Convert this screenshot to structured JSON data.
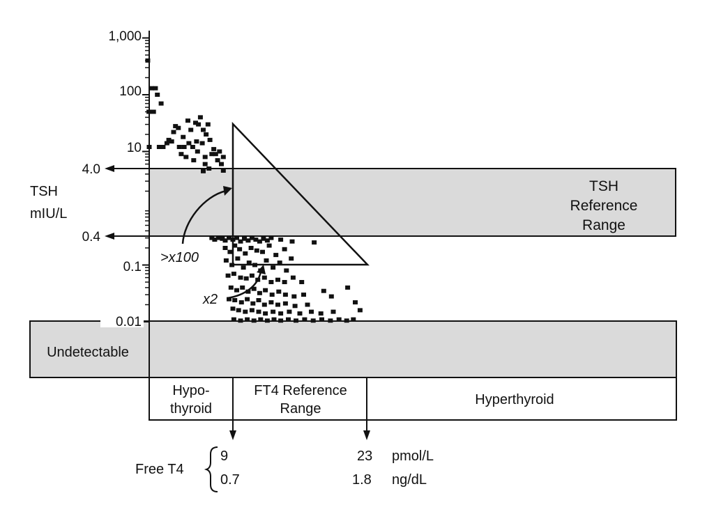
{
  "chart_data": {
    "type": "scatter",
    "y_scale": "log",
    "ylim": [
      0.005,
      1000
    ],
    "ylabel": [
      "TSH",
      "mIU/L"
    ],
    "y_ticks": [
      {
        "value": 1000,
        "label": "1,000"
      },
      {
        "value": 100,
        "label": "100"
      },
      {
        "value": 10,
        "label": "10"
      },
      {
        "value": 4.0,
        "label": "4.0"
      },
      {
        "value": 0.4,
        "label": "0.4"
      },
      {
        "value": 0.1,
        "label": "0.1"
      },
      {
        "value": 0.01,
        "label": "0.01"
      }
    ],
    "reference_band": {
      "low": 0.4,
      "high": 4.0,
      "label": [
        "TSH",
        "Reference",
        "Range"
      ]
    },
    "undetectable_band": {
      "label": "Undetectable",
      "threshold": 0.01
    },
    "x_regions": [
      {
        "label": [
          "Hypo-",
          "thyroid"
        ]
      },
      {
        "label": [
          "FT4 Reference",
          "Range"
        ]
      },
      {
        "label": [
          "Hyperthyroid"
        ]
      }
    ],
    "ft4_axis": {
      "name": "Free T4",
      "pmol_per_L": {
        "low": "9",
        "high": "23",
        "unit": "pmol/L"
      },
      "ng_per_dL": {
        "low": "0.7",
        "high": "1.8",
        "unit": "ng/dL"
      }
    },
    "annotations": [
      {
        "text": ">x100",
        "describes": "TSH change"
      },
      {
        "text": "x2",
        "describes": "FT4 change"
      }
    ],
    "points": [
      [
        0.1,
        400
      ],
      [
        0.22,
        50
      ],
      [
        0.25,
        12
      ],
      [
        0.5,
        130
      ],
      [
        0.7,
        50
      ],
      [
        0.9,
        130
      ],
      [
        1.1,
        100
      ],
      [
        1.5,
        70
      ],
      [
        1.3,
        12
      ],
      [
        1.7,
        12
      ],
      [
        2.1,
        14
      ],
      [
        2.3,
        16
      ],
      [
        2.6,
        15
      ],
      [
        2.8,
        22
      ],
      [
        3.0,
        28
      ],
      [
        3.3,
        26
      ],
      [
        3.4,
        12
      ],
      [
        3.6,
        9
      ],
      [
        3.8,
        18
      ],
      [
        3.9,
        12
      ],
      [
        4.1,
        8
      ],
      [
        4.3,
        35
      ],
      [
        4.4,
        14
      ],
      [
        4.6,
        24
      ],
      [
        4.8,
        12
      ],
      [
        4.9,
        7
      ],
      [
        5.1,
        32
      ],
      [
        5.2,
        15
      ],
      [
        5.4,
        30
      ],
      [
        5.3,
        10
      ],
      [
        5.6,
        40
      ],
      [
        5.8,
        14
      ],
      [
        5.9,
        24
      ],
      [
        6.1,
        8
      ],
      [
        6.2,
        20
      ],
      [
        6.4,
        30
      ],
      [
        6.6,
        16
      ],
      [
        6.8,
        9
      ],
      [
        7.0,
        11
      ],
      [
        7.2,
        9
      ],
      [
        7.4,
        7
      ],
      [
        7.6,
        10
      ],
      [
        7.8,
        6
      ],
      [
        8.0,
        8
      ],
      [
        5.9,
        4.5
      ],
      [
        6.5,
        5
      ],
      [
        8.0,
        4.6
      ],
      [
        6.1,
        6
      ],
      [
        6.8,
        0.3
      ],
      [
        7.1,
        0.28
      ],
      [
        7.5,
        0.3
      ],
      [
        7.9,
        0.29
      ],
      [
        8.2,
        0.27
      ],
      [
        8.6,
        0.3
      ],
      [
        9.0,
        0.28
      ],
      [
        9.4,
        0.3
      ],
      [
        9.8,
        0.26
      ],
      [
        10.2,
        0.29
      ],
      [
        10.6,
        0.27
      ],
      [
        11.0,
        0.3
      ],
      [
        11.4,
        0.28
      ],
      [
        11.8,
        0.26
      ],
      [
        12.2,
        0.29
      ],
      [
        12.6,
        0.27
      ],
      [
        13.0,
        0.3
      ],
      [
        14.0,
        0.28
      ],
      [
        15.2,
        0.26
      ],
      [
        8.2,
        0.2
      ],
      [
        8.7,
        0.17
      ],
      [
        9.2,
        0.22
      ],
      [
        9.7,
        0.19
      ],
      [
        10.3,
        0.16
      ],
      [
        10.9,
        0.2
      ],
      [
        11.5,
        0.18
      ],
      [
        12.1,
        0.17
      ],
      [
        12.8,
        0.22
      ],
      [
        13.5,
        0.15
      ],
      [
        14.4,
        0.19
      ],
      [
        15.1,
        0.13
      ],
      [
        17.5,
        0.25
      ],
      [
        8.3,
        0.12
      ],
      [
        8.9,
        0.1
      ],
      [
        9.5,
        0.13
      ],
      [
        10.1,
        0.09
      ],
      [
        10.7,
        0.11
      ],
      [
        11.3,
        0.1
      ],
      [
        11.9,
        0.08
      ],
      [
        12.5,
        0.12
      ],
      [
        13.2,
        0.09
      ],
      [
        13.9,
        0.11
      ],
      [
        14.6,
        0.08
      ],
      [
        8.5,
        0.065
      ],
      [
        9.1,
        0.07
      ],
      [
        9.8,
        0.06
      ],
      [
        10.4,
        0.058
      ],
      [
        11.0,
        0.065
      ],
      [
        11.6,
        0.055
      ],
      [
        12.3,
        0.06
      ],
      [
        13.0,
        0.05
      ],
      [
        13.7,
        0.055
      ],
      [
        14.4,
        0.05
      ],
      [
        15.3,
        0.06
      ],
      [
        16.2,
        0.05
      ],
      [
        8.8,
        0.04
      ],
      [
        9.4,
        0.036
      ],
      [
        10.0,
        0.04
      ],
      [
        10.6,
        0.034
      ],
      [
        11.2,
        0.038
      ],
      [
        11.8,
        0.032
      ],
      [
        12.4,
        0.036
      ],
      [
        13.1,
        0.03
      ],
      [
        13.8,
        0.034
      ],
      [
        14.5,
        0.03
      ],
      [
        15.4,
        0.028
      ],
      [
        16.4,
        0.03
      ],
      [
        8.6,
        0.025
      ],
      [
        9.2,
        0.024
      ],
      [
        9.9,
        0.022
      ],
      [
        10.5,
        0.025
      ],
      [
        11.1,
        0.021
      ],
      [
        11.7,
        0.024
      ],
      [
        12.3,
        0.02
      ],
      [
        13.0,
        0.022
      ],
      [
        13.7,
        0.02
      ],
      [
        14.5,
        0.021
      ],
      [
        15.5,
        0.019
      ],
      [
        16.8,
        0.02
      ],
      [
        18.5,
        0.035
      ],
      [
        19.3,
        0.028
      ],
      [
        21.0,
        0.04
      ],
      [
        21.8,
        0.022
      ],
      [
        9.0,
        0.017
      ],
      [
        9.6,
        0.016
      ],
      [
        10.3,
        0.015
      ],
      [
        11.0,
        0.016
      ],
      [
        11.7,
        0.015
      ],
      [
        12.4,
        0.014
      ],
      [
        13.2,
        0.015
      ],
      [
        14.0,
        0.014
      ],
      [
        14.9,
        0.015
      ],
      [
        16.0,
        0.014
      ],
      [
        17.2,
        0.015
      ],
      [
        18.2,
        0.014
      ],
      [
        19.5,
        0.015
      ],
      [
        22.3,
        0.016
      ],
      [
        9.1,
        0.011
      ],
      [
        9.8,
        0.0105
      ],
      [
        10.5,
        0.011
      ],
      [
        11.2,
        0.0105
      ],
      [
        11.9,
        0.011
      ],
      [
        12.6,
        0.0105
      ],
      [
        13.3,
        0.011
      ],
      [
        14.0,
        0.0105
      ],
      [
        14.8,
        0.011
      ],
      [
        15.6,
        0.0105
      ],
      [
        16.5,
        0.011
      ],
      [
        17.4,
        0.0105
      ],
      [
        18.3,
        0.011
      ],
      [
        19.2,
        0.0105
      ],
      [
        20.1,
        0.011
      ],
      [
        20.9,
        0.0105
      ],
      [
        21.6,
        0.011
      ]
    ]
  }
}
